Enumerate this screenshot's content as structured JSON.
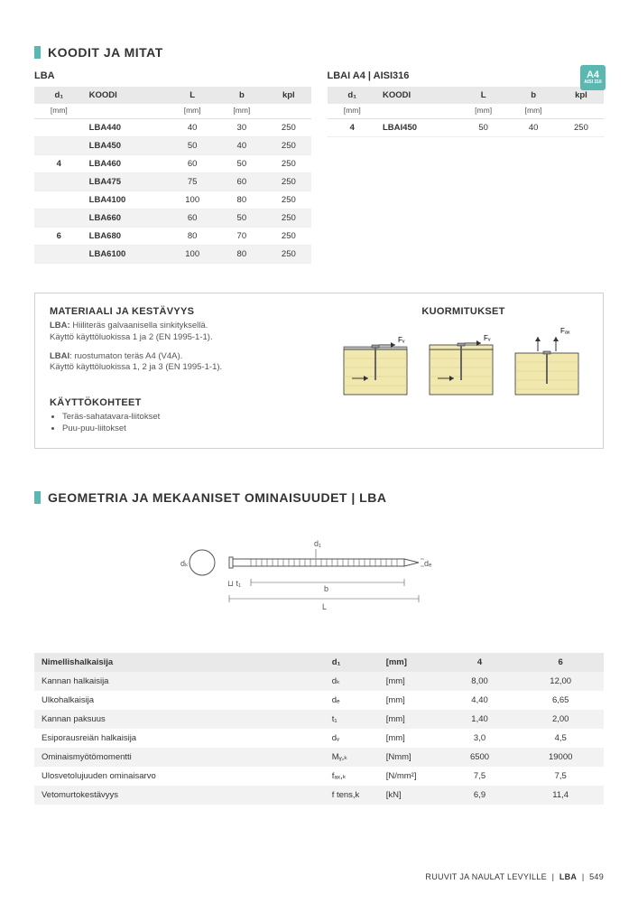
{
  "colors": {
    "accent": "#5bb8b0",
    "header_bg": "#e9e9e9",
    "alt_row": "#f2f2f2",
    "border": "#d0d0d0",
    "wood_light": "#f1e8b0",
    "wood_dark": "#d4c87a",
    "background": "#ffffff",
    "text": "#333333"
  },
  "section1": {
    "title": "KOODIT JA MITAT",
    "leftTable": {
      "caption": "LBA",
      "columns": [
        "d₁",
        "KOODI",
        "L",
        "b",
        "kpl"
      ],
      "units": [
        "[mm]",
        "",
        "[mm]",
        "[mm]",
        ""
      ],
      "groups": [
        {
          "d1": "4",
          "rows": [
            {
              "code": "LBA440",
              "L": "40",
              "b": "30",
              "kpl": "250",
              "alt": false
            },
            {
              "code": "LBA450",
              "L": "50",
              "b": "40",
              "kpl": "250",
              "alt": true
            },
            {
              "code": "LBA460",
              "L": "60",
              "b": "50",
              "kpl": "250",
              "alt": false
            },
            {
              "code": "LBA475",
              "L": "75",
              "b": "60",
              "kpl": "250",
              "alt": true
            },
            {
              "code": "LBA4100",
              "L": "100",
              "b": "80",
              "kpl": "250",
              "alt": false
            }
          ]
        },
        {
          "d1": "6",
          "rows": [
            {
              "code": "LBA660",
              "L": "60",
              "b": "50",
              "kpl": "250",
              "alt": true
            },
            {
              "code": "LBA680",
              "L": "80",
              "b": "70",
              "kpl": "250",
              "alt": false
            },
            {
              "code": "LBA6100",
              "L": "100",
              "b": "80",
              "kpl": "250",
              "alt": true
            }
          ]
        }
      ]
    },
    "rightTable": {
      "caption": "LBAI A4 | AISI316",
      "columns": [
        "d₁",
        "KOODI",
        "L",
        "b",
        "kpl"
      ],
      "units": [
        "[mm]",
        "",
        "[mm]",
        "[mm]",
        ""
      ],
      "rows": [
        {
          "d1": "4",
          "code": "LBAI450",
          "L": "50",
          "b": "40",
          "kpl": "250",
          "alt": false
        }
      ]
    },
    "badge": {
      "top": "A4",
      "bottom": "AISI 316"
    }
  },
  "info": {
    "material": {
      "heading": "MATERIAALI JA KESTÄVYYS",
      "line1a": "LBA:",
      "line1b": " Hiiliteräs galvaanisella sinkityksellä.",
      "line1c": "Käyttö käyttöluokissa 1 ja 2 (EN 1995-1-1).",
      "line2a": "LBAI",
      "line2b": ": ruostumaton teräs A4 (V4A).",
      "line2c": "Käyttö käyttöluokissa 1, 2 ja 3 (EN 1995-1-1)."
    },
    "uses": {
      "heading": "KÄYTTÖKOHTEET",
      "items": [
        "Teräs-sahatavara-liitokset",
        "Puu-puu-liitokset"
      ]
    },
    "loads": {
      "heading": "KUORMITUKSET",
      "labels": {
        "fv": "Fᵥ",
        "fax": "Fₐₓ"
      }
    }
  },
  "section2": {
    "title": "GEOMETRIA JA MEKAANISET OMINAISUUDET | LBA",
    "diagLabels": {
      "dk": "dₖ",
      "d1": "d₁",
      "de": "dₑ",
      "t1": "t₁",
      "b": "b",
      "L": "L"
    }
  },
  "props": {
    "header": [
      "Nimellishalkaisija",
      "d₁",
      "[mm]",
      "4",
      "6"
    ],
    "rows": [
      {
        "label": "Kannan halkaisija",
        "sym": "dₖ",
        "unit": "[mm]",
        "v4": "8,00",
        "v6": "12,00",
        "alt": true
      },
      {
        "label": "Ulkohalkaisija",
        "sym": "dₑ",
        "unit": "[mm]",
        "v4": "4,40",
        "v6": "6,65",
        "alt": false
      },
      {
        "label": "Kannan paksuus",
        "sym": "t₁",
        "unit": "[mm]",
        "v4": "1,40",
        "v6": "2,00",
        "alt": true
      },
      {
        "label": "Esiporausreiän halkaisija",
        "sym": "dᵥ",
        "unit": "[mm]",
        "v4": "3,0",
        "v6": "4,5",
        "alt": false
      },
      {
        "label": "Ominaismyötömomentti",
        "sym": "Mᵧ,ₖ",
        "unit": "[Nmm]",
        "v4": "6500",
        "v6": "19000",
        "alt": true
      },
      {
        "label": "Ulosvetolujuuden ominaisarvo",
        "sym": "fₐₓ,ₖ",
        "unit": "[N/mm²]",
        "v4": "7,5",
        "v6": "7,5",
        "alt": false
      },
      {
        "label": "Vetomurtokestävyys",
        "sym": "f tens,k",
        "unit": "[kN]",
        "v4": "6,9",
        "v6": "11,4",
        "alt": true
      }
    ]
  },
  "footer": {
    "category": "RUUVIT JA NAULAT LEVYILLE",
    "code": "LBA",
    "page": "549"
  }
}
